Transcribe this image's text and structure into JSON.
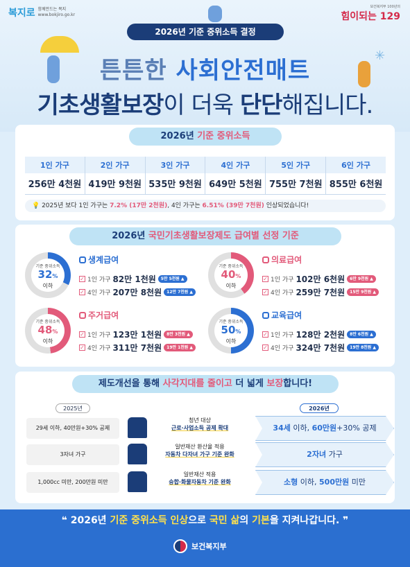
{
  "header": {
    "logo_mark": "복지로",
    "logo_tagline": "함께만드는 복지",
    "logo_url": "www.bokjiro.go.kr",
    "right_small": "보건복지부 100년의",
    "right_big": "힘이되는 129",
    "decision": "2026년 기준 중위소득 결정",
    "headline1_a": "튼튼한 ",
    "headline1_b": "사회안전매트",
    "headline2_a": "기초생활보장",
    "headline2_b": "이 더욱 ",
    "headline2_c": "단단",
    "headline2_d": "해집니다."
  },
  "income": {
    "title_a": "2026년 ",
    "title_b": "기준 중위소득",
    "columns": [
      "1인 가구",
      "2인 가구",
      "3인 가구",
      "4인 가구",
      "5인 가구",
      "6인 가구"
    ],
    "values": [
      "256만 4천원",
      "419만 9천원",
      "535만 9천원",
      "649만 5천원",
      "755만 7천원",
      "855만 6천원"
    ],
    "note_a": "2025년 보다 1인 가구는 ",
    "note_b": "7.2% (17만 2천원)",
    "note_c": ", 4인 가구는 ",
    "note_d": "6.51% (39만 7천원)",
    "note_e": " 인상되었습니다!"
  },
  "benefits": {
    "title_a": "2026년 ",
    "title_b": "국민기초생활보장제도 급여별 선정 기준",
    "ring_label": "기준 중위소득",
    "ring_below": "이하",
    "items": [
      {
        "name": "생계급여",
        "pct": "32",
        "unit": "%",
        "color": "#2c6fd2",
        "r1_house": "1인 가구",
        "r1_amt": "82만 1천원",
        "r1_tag": "5만 5천원",
        "r2_house": "4인 가구",
        "r2_amt": "207만 8천원",
        "r2_tag": "12만 7천원"
      },
      {
        "name": "의료급여",
        "pct": "40",
        "unit": "%",
        "color": "#e25a7a",
        "r1_house": "1인 가구",
        "r1_amt": "102만 6천원",
        "r1_tag": "6만 9천원",
        "r2_house": "4인 가구",
        "r2_amt": "259만 7천원",
        "r2_tag": "15만 9천원"
      },
      {
        "name": "주거급여",
        "pct": "48",
        "unit": "%",
        "color": "#e25a7a",
        "r1_house": "1인 가구",
        "r1_amt": "123만 1천원",
        "r1_tag": "8만 3천원",
        "r2_house": "4인 가구",
        "r2_amt": "311만 7천원",
        "r2_tag": "19만 1천원"
      },
      {
        "name": "교육급여",
        "pct": "50",
        "unit": "%",
        "color": "#2c6fd2",
        "r1_house": "1인 가구",
        "r1_amt": "128만 2천원",
        "r1_tag": "8만 6천원",
        "r2_house": "4인 가구",
        "r2_amt": "324만 7천원",
        "r2_tag": "19만 8천원"
      }
    ]
  },
  "improve": {
    "title_a": "제도개선을 통해 ",
    "title_b": "사각지대를 줄이고",
    "title_c": " 더 넓게 ",
    "title_d": "보장",
    "title_e": "합니다!",
    "year_old": "2025년",
    "year_new": "2026년",
    "rows": [
      {
        "old": "29세 이하, 40만원+30% 공제",
        "m1": "청년 대상",
        "m2": "근로·사업소득 공제 확대",
        "new_a": "34세",
        "new_b": " 이하, ",
        "new_c": "60만원",
        "new_d": "+30% 공제"
      },
      {
        "old": "3자녀 가구",
        "m1": "일반재산 환산율 적용",
        "m2": "자동차 다자녀 가구 기준 완화",
        "new_a": "2자녀",
        "new_b": " 가구",
        "new_c": "",
        "new_d": ""
      },
      {
        "old": "1,000cc 미만, 200만원 미만",
        "m1": "일반재산 적용",
        "m2": "승합·화물자동차 기준 완화",
        "new_a": "소형",
        "new_b": " 이하, ",
        "new_c": "500만원",
        "new_d": " 미만"
      }
    ]
  },
  "footer": {
    "text_a": "❝ 2026년 ",
    "text_b": "기준 중위소득 인상",
    "text_c": "으로 ",
    "text_d": "국민 삶",
    "text_e": "의 ",
    "text_f": "기본",
    "text_g": "을 지켜나갑니다. ❞",
    "ministry": "보건복지부"
  },
  "colors": {
    "navy": "#1b3d78",
    "blue": "#2c6fd2",
    "pink": "#e25a7a",
    "yellow": "#f5cf3c"
  }
}
